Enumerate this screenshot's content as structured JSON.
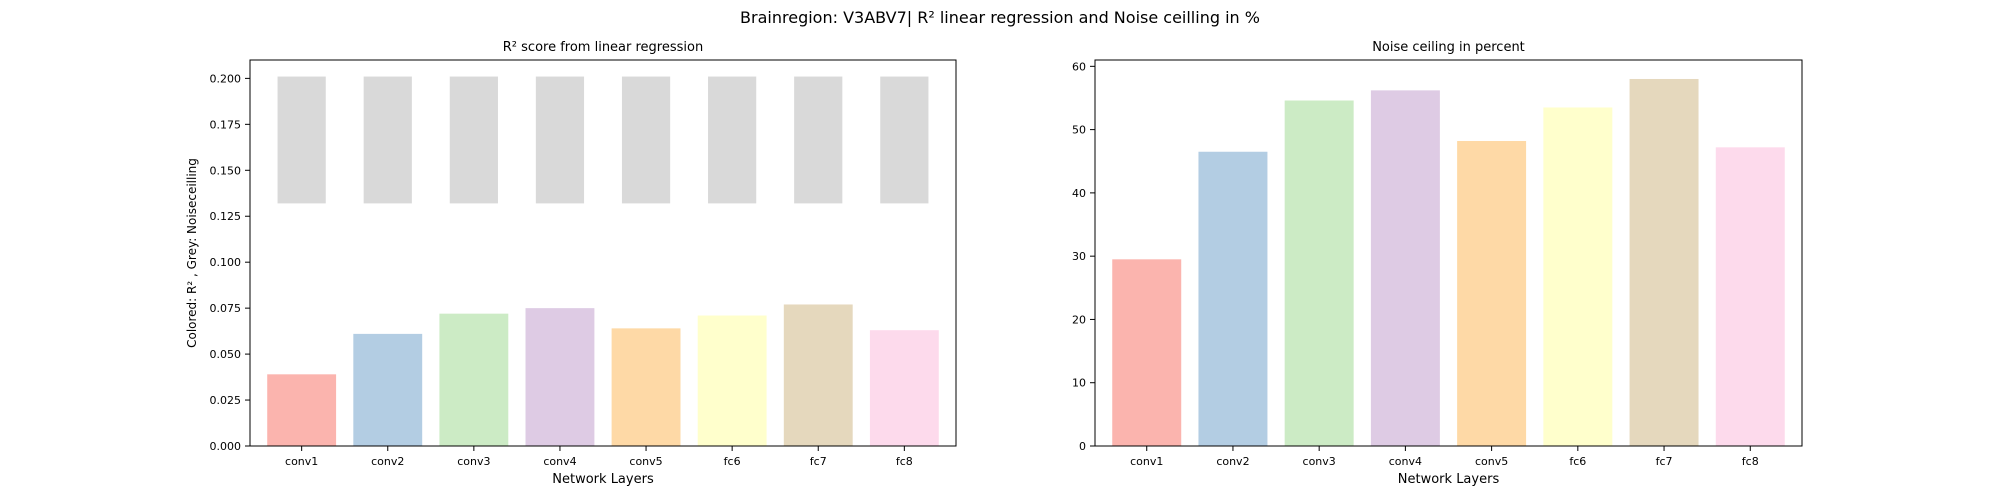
{
  "figure": {
    "suptitle": "Brainregion: V3ABV7| R² linear regression and Noise ceilling in %"
  },
  "colors": {
    "bars": [
      "#fbb4ae",
      "#b3cde3",
      "#ccebc5",
      "#decbe4",
      "#fed9a6",
      "#ffffcc",
      "#e5d8bd",
      "#fddaec"
    ],
    "noise_ceiling_grey": "#d9d9d9",
    "axes": "#000000"
  },
  "chart_data": [
    {
      "type": "bar",
      "title": "R² score from linear regression",
      "xlabel": "Network Layers",
      "ylabel": "Colored: R² , Grey: Noiseceilling",
      "categories": [
        "conv1",
        "conv2",
        "conv3",
        "conv4",
        "conv5",
        "fc6",
        "fc7",
        "fc8"
      ],
      "ylim": [
        0,
        0.21
      ],
      "yticks": [
        0.0,
        0.025,
        0.05,
        0.075,
        0.1,
        0.125,
        0.15,
        0.175,
        0.2
      ],
      "ytick_labels": [
        "0.000",
        "0.025",
        "0.050",
        "0.075",
        "0.100",
        "0.125",
        "0.150",
        "0.175",
        "0.200"
      ],
      "series": [
        {
          "values": [
            0.039,
            0.061,
            0.072,
            0.075,
            0.064,
            0.071,
            0.077,
            0.063
          ]
        },
        {
          "ranges": [
            [
              0.132,
              0.201
            ],
            [
              0.132,
              0.201
            ],
            [
              0.132,
              0.201
            ],
            [
              0.132,
              0.201
            ],
            [
              0.132,
              0.201
            ],
            [
              0.132,
              0.201
            ],
            [
              0.132,
              0.201
            ],
            [
              0.132,
              0.201
            ]
          ]
        }
      ]
    },
    {
      "type": "bar",
      "title": "Noise ceiling in percent",
      "xlabel": "Network Layers",
      "ylabel": "",
      "categories": [
        "conv1",
        "conv2",
        "conv3",
        "conv4",
        "conv5",
        "fc6",
        "fc7",
        "fc8"
      ],
      "ylim": [
        0,
        61
      ],
      "yticks": [
        0,
        10,
        20,
        30,
        40,
        50,
        60
      ],
      "ytick_labels": [
        "0",
        "10",
        "20",
        "30",
        "40",
        "50",
        "60"
      ],
      "values": [
        29.5,
        46.5,
        54.6,
        56.2,
        48.2,
        53.5,
        58.0,
        47.2
      ]
    }
  ]
}
